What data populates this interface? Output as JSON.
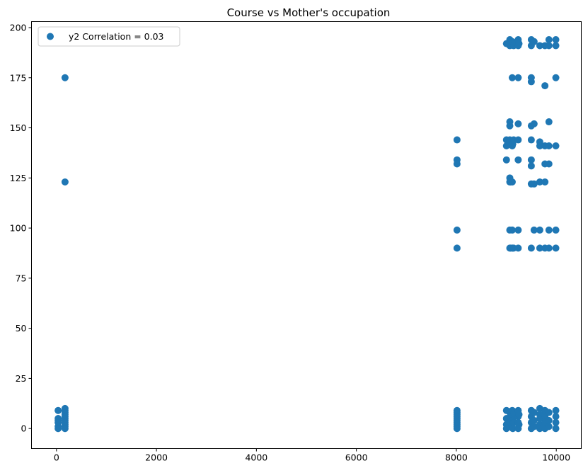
{
  "chart_data": {
    "type": "scatter",
    "title": "Course vs Mother's occupation",
    "xlabel": "",
    "ylabel": "",
    "xlim": [
      -500,
      10500
    ],
    "ylim": [
      -10,
      203
    ],
    "x_ticks": [
      0,
      2000,
      4000,
      6000,
      8000,
      10000
    ],
    "y_ticks": [
      0,
      25,
      50,
      75,
      100,
      125,
      150,
      175,
      200
    ],
    "grid": false,
    "legend_position": "top-left",
    "marker_color": "#1f77b4",
    "series": [
      {
        "name": "y2 Correlation = 0.03",
        "points": [
          [
            33,
            9
          ],
          [
            33,
            5
          ],
          [
            33,
            4
          ],
          [
            33,
            3
          ],
          [
            33,
            1
          ],
          [
            33,
            0
          ],
          [
            171,
            175
          ],
          [
            171,
            123
          ],
          [
            171,
            10
          ],
          [
            171,
            9
          ],
          [
            171,
            8
          ],
          [
            171,
            7
          ],
          [
            171,
            6
          ],
          [
            171,
            5
          ],
          [
            171,
            4
          ],
          [
            171,
            3
          ],
          [
            171,
            2
          ],
          [
            171,
            1
          ],
          [
            171,
            0
          ],
          [
            8014,
            144
          ],
          [
            8014,
            134
          ],
          [
            8014,
            132
          ],
          [
            8014,
            99
          ],
          [
            8014,
            90
          ],
          [
            8014,
            9
          ],
          [
            8014,
            8
          ],
          [
            8014,
            7
          ],
          [
            8014,
            6
          ],
          [
            8014,
            5
          ],
          [
            8014,
            4
          ],
          [
            8014,
            3
          ],
          [
            8014,
            2
          ],
          [
            8014,
            1
          ],
          [
            8014,
            0
          ],
          [
            9003,
            192
          ],
          [
            9003,
            144
          ],
          [
            9003,
            141
          ],
          [
            9003,
            134
          ],
          [
            9003,
            9
          ],
          [
            9003,
            5
          ],
          [
            9003,
            2
          ],
          [
            9003,
            0
          ],
          [
            9070,
            194
          ],
          [
            9070,
            191
          ],
          [
            9070,
            153
          ],
          [
            9070,
            151
          ],
          [
            9070,
            144
          ],
          [
            9070,
            125
          ],
          [
            9070,
            123
          ],
          [
            9070,
            99
          ],
          [
            9070,
            90
          ],
          [
            9070,
            8
          ],
          [
            9070,
            4
          ],
          [
            9070,
            1
          ],
          [
            9085,
            193
          ],
          [
            9085,
            143
          ],
          [
            9085,
            123
          ],
          [
            9085,
            90
          ],
          [
            9085,
            6
          ],
          [
            9085,
            3
          ],
          [
            9119,
            193
          ],
          [
            9119,
            175
          ],
          [
            9119,
            141
          ],
          [
            9119,
            123
          ],
          [
            9119,
            99
          ],
          [
            9119,
            90
          ],
          [
            9119,
            9
          ],
          [
            9119,
            5
          ],
          [
            9119,
            2
          ],
          [
            9130,
            192
          ],
          [
            9130,
            142
          ],
          [
            9130,
            90
          ],
          [
            9130,
            7
          ],
          [
            9130,
            4
          ],
          [
            9130,
            0
          ],
          [
            9147,
            191
          ],
          [
            9147,
            144
          ],
          [
            9147,
            90
          ],
          [
            9147,
            8
          ],
          [
            9147,
            3
          ],
          [
            9238,
            194
          ],
          [
            9238,
            191
          ],
          [
            9238,
            175
          ],
          [
            9238,
            152
          ],
          [
            9238,
            144
          ],
          [
            9238,
            134
          ],
          [
            9238,
            99
          ],
          [
            9238,
            90
          ],
          [
            9238,
            9
          ],
          [
            9238,
            6
          ],
          [
            9238,
            3
          ],
          [
            9238,
            0
          ],
          [
            9254,
            192
          ],
          [
            9254,
            7
          ],
          [
            9254,
            2
          ],
          [
            9500,
            194
          ],
          [
            9500,
            191
          ],
          [
            9500,
            175
          ],
          [
            9500,
            173
          ],
          [
            9500,
            151
          ],
          [
            9500,
            144
          ],
          [
            9500,
            134
          ],
          [
            9500,
            131
          ],
          [
            9500,
            122
          ],
          [
            9500,
            90
          ],
          [
            9500,
            9
          ],
          [
            9500,
            6
          ],
          [
            9500,
            3
          ],
          [
            9500,
            0
          ],
          [
            9556,
            193
          ],
          [
            9556,
            152
          ],
          [
            9556,
            122
          ],
          [
            9556,
            99
          ],
          [
            9556,
            8
          ],
          [
            9556,
            4
          ],
          [
            9556,
            1
          ],
          [
            9670,
            191
          ],
          [
            9670,
            143
          ],
          [
            9670,
            141
          ],
          [
            9670,
            123
          ],
          [
            9670,
            99
          ],
          [
            9670,
            90
          ],
          [
            9670,
            10
          ],
          [
            9670,
            7
          ],
          [
            9670,
            5
          ],
          [
            9670,
            2
          ],
          [
            9670,
            0
          ],
          [
            9773,
            191
          ],
          [
            9773,
            171
          ],
          [
            9773,
            141
          ],
          [
            9773,
            132
          ],
          [
            9773,
            123
          ],
          [
            9773,
            90
          ],
          [
            9773,
            9
          ],
          [
            9773,
            6
          ],
          [
            9773,
            3
          ],
          [
            9773,
            0
          ],
          [
            9853,
            194
          ],
          [
            9853,
            191
          ],
          [
            9853,
            153
          ],
          [
            9853,
            141
          ],
          [
            9853,
            132
          ],
          [
            9853,
            99
          ],
          [
            9853,
            90
          ],
          [
            9853,
            8
          ],
          [
            9853,
            4
          ],
          [
            9853,
            1
          ],
          [
            9991,
            194
          ],
          [
            9991,
            191
          ],
          [
            9991,
            175
          ],
          [
            9991,
            141
          ],
          [
            9991,
            99
          ],
          [
            9991,
            90
          ],
          [
            9991,
            9
          ],
          [
            9991,
            6
          ],
          [
            9991,
            3
          ],
          [
            9991,
            0
          ]
        ]
      }
    ]
  }
}
